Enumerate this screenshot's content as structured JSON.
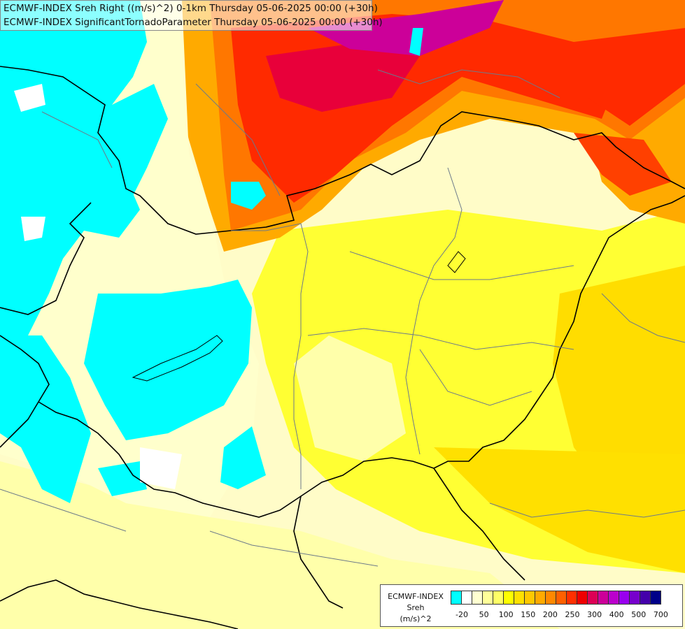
{
  "header": {
    "line1": "ECMWF-INDEX Sreh Right ((m/s)^2) 0-1km Thursday 05-06-2025 00:00 (+30h)",
    "line2": "ECMWF-INDEX SignificantTornadoParameter Thursday 05-06-2025 00:00 (+30h)"
  },
  "legend": {
    "label_model": "ECMWF-INDEX",
    "label_param": "Sreh",
    "label_unit": "(m/s)^2",
    "swatch_colors": [
      "#00ffff",
      "#ffffff",
      "#ffffd0",
      "#ffff99",
      "#ffff66",
      "#ffff00",
      "#ffe000",
      "#ffc800",
      "#ffaa00",
      "#ff8800",
      "#ff6000",
      "#ff3000",
      "#ee0000",
      "#dd0055",
      "#cc0099",
      "#bb00cc",
      "#9900ee",
      "#7700cc",
      "#4400aa",
      "#000088"
    ],
    "tick_labels": [
      "-20",
      "50",
      "100",
      "150",
      "200",
      "250",
      "300",
      "400",
      "500",
      "700"
    ]
  }
}
